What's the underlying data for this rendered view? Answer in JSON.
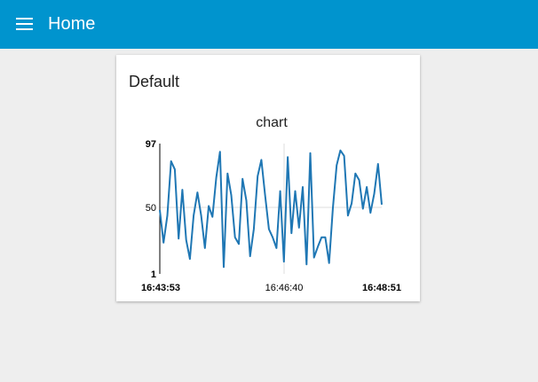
{
  "header": {
    "menu_icon": "hamburger-menu-icon",
    "title": "Home",
    "bar_color": "#0094ce"
  },
  "group": {
    "title": "Default"
  },
  "chart_data": {
    "type": "line",
    "title": "chart",
    "ylim": [
      1,
      97
    ],
    "y_ticks": [
      "97",
      "50",
      "1"
    ],
    "x_ticks": [
      "16:43:53",
      "16:46:40",
      "16:48:51"
    ],
    "grid": true,
    "line_color": "#1f77b4",
    "series": [
      {
        "values": [
          48,
          24,
          44,
          84,
          78,
          27,
          63,
          26,
          12,
          44,
          61,
          44,
          20,
          51,
          43,
          72,
          91,
          6,
          75,
          59,
          28,
          23,
          71,
          55,
          14,
          34,
          73,
          85,
          59,
          34,
          28,
          20,
          62,
          10,
          87,
          31,
          62,
          35,
          65,
          8,
          90,
          13,
          21,
          28,
          28,
          9,
          49,
          81,
          92,
          88,
          44,
          53,
          75,
          70,
          49,
          65,
          46,
          60,
          82,
          52
        ]
      }
    ]
  }
}
